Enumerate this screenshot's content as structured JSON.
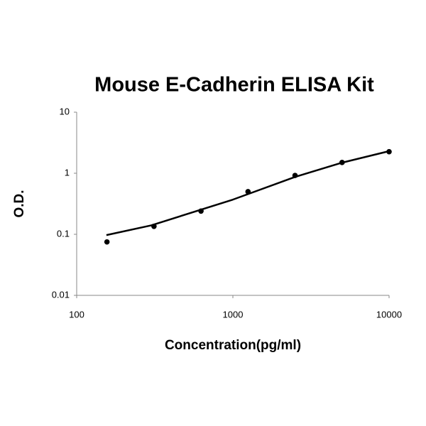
{
  "chart_data": {
    "type": "scatter",
    "title": "Mouse E-Cadherin ELISA Kit",
    "x_label": "Concentration(pg/ml)",
    "y_label": "O.D.",
    "xscale": "log",
    "yscale": "log",
    "xlim": [
      100,
      10000
    ],
    "ylim": [
      0.01,
      10
    ],
    "xticks": [
      100,
      1000,
      10000
    ],
    "yticks": [
      0.01,
      0.1,
      1,
      10
    ],
    "series": [
      {
        "type": "scatter",
        "color": "#000000",
        "x": [
          156.25,
          312.5,
          625,
          1250,
          2500,
          5000,
          10000
        ],
        "values": [
          0.075,
          0.135,
          0.24,
          0.5,
          0.92,
          1.5,
          2.25
        ]
      },
      {
        "type": "line",
        "color": "#000000",
        "x": [
          155,
          300,
          1000,
          2500,
          5000,
          10000
        ],
        "values": [
          0.097,
          0.14,
          0.37,
          0.87,
          1.49,
          2.3
        ]
      }
    ]
  }
}
